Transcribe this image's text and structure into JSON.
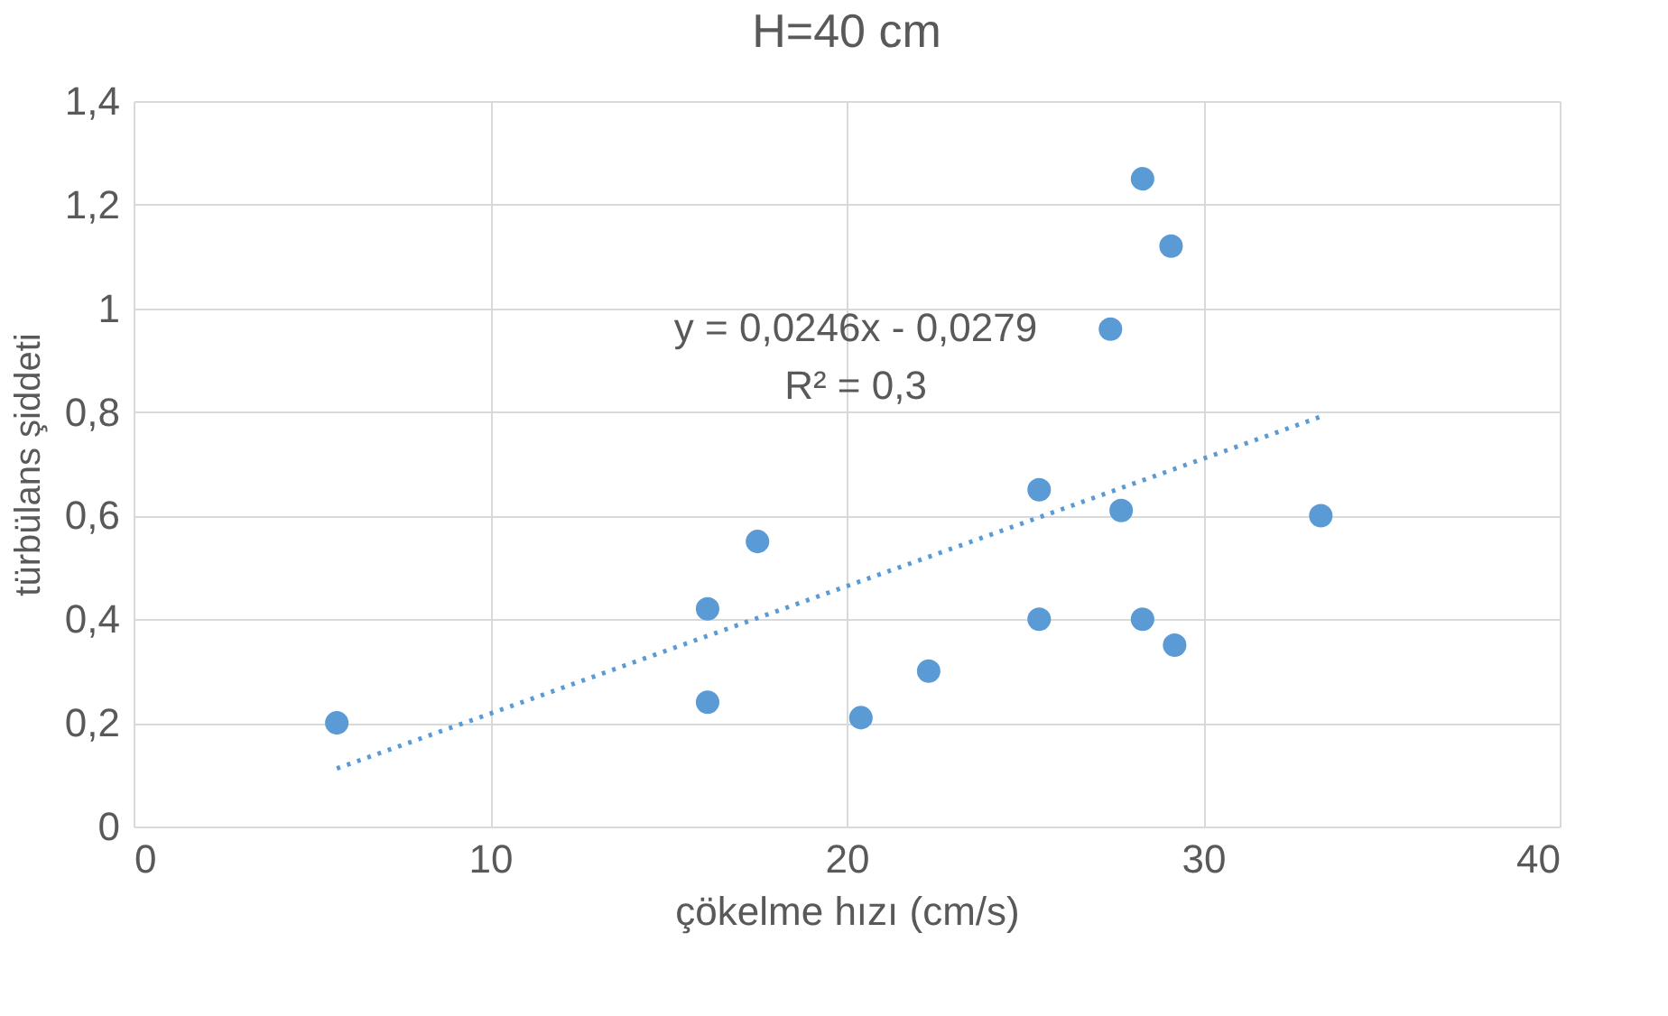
{
  "chart_data": {
    "type": "scatter",
    "title": "H=40 cm",
    "xlabel": "çökelme hızı (cm/s)",
    "ylabel": "türbülans şiddeti",
    "series": [
      {
        "color": "#5b9bd5",
        "x": [
          5.7,
          16.1,
          16.1,
          17.5,
          20.4,
          22.3,
          25.4,
          25.4,
          27.4,
          27.7,
          28.3,
          28.3,
          29.1,
          29.2,
          33.3
        ],
        "values": [
          0.2,
          0.42,
          0.24,
          0.55,
          0.21,
          0.3,
          0.65,
          0.4,
          0.96,
          0.61,
          1.25,
          0.4,
          1.12,
          0.35,
          0.6
        ],
        "marker": "circle"
      },
      {
        "type": "line",
        "color": "#5b9bd5",
        "x": [
          5.7,
          33.3
        ],
        "values": [
          0.112,
          0.791
        ],
        "line_style": "dotted",
        "marker": "none"
      }
    ],
    "xlim": [
      0,
      40
    ],
    "xticks": [
      0,
      10,
      20,
      30,
      40
    ],
    "ylim": [
      0,
      1.4
    ],
    "yticks": [
      0,
      {
        "value": 0.2,
        "label": "0,2"
      },
      {
        "value": 0.4,
        "label": "0,4"
      },
      {
        "value": 0.6,
        "label": "0,6"
      },
      {
        "value": 0.8,
        "label": "0,8"
      },
      1,
      {
        "value": 1.2,
        "label": "1,2"
      },
      {
        "value": 1.4,
        "label": "1,4"
      }
    ],
    "grid": true,
    "annotations": [
      "y = 0,0246x - 0,0279",
      "R² = 0,3"
    ]
  }
}
